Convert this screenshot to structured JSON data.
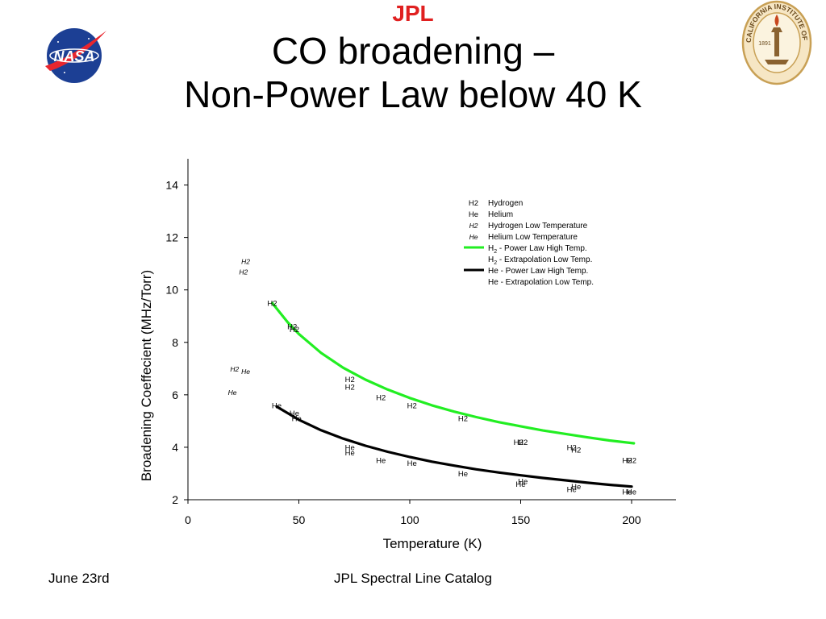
{
  "slide": {
    "title_line1": "CO broadening –",
    "title_line2": "Non-Power Law below 40 K",
    "footer_date": "June 23rd",
    "footer_source": "JPL Spectral Line Catalog"
  },
  "logos": {
    "nasa_text": "NASA",
    "jpl_text": "JPL",
    "caltech_ring_text": "CALIFORNIA INSTITUTE OF TECHNOLOGY",
    "caltech_year": "1891",
    "nasa_colors": {
      "disc": "#1c3f94",
      "chevron": "#e8262e"
    },
    "jpl_color": "#e02020",
    "caltech_color": "#c8a055"
  },
  "chart_data": {
    "type": "scatter",
    "title": "",
    "xlabel": "Temperature (K)",
    "ylabel": "Broadening Coeffecient (MHz/Torr)",
    "xlim": [
      0,
      220
    ],
    "ylim": [
      2,
      15
    ],
    "xticks": [
      0,
      50,
      100,
      150,
      200
    ],
    "yticks": [
      2,
      4,
      6,
      8,
      10,
      12,
      14
    ],
    "grid": false,
    "legend_position": "top-right",
    "legend": [
      {
        "symbol": "H2",
        "label": "Hydrogen",
        "kind": "marker",
        "italic": false
      },
      {
        "symbol": "He",
        "label": "Helium",
        "kind": "marker",
        "italic": false
      },
      {
        "symbol": "H2",
        "label": "Hydrogen Low Temperature",
        "kind": "marker",
        "italic": true
      },
      {
        "symbol": "He",
        "label": "Helium Low Temperature",
        "kind": "marker",
        "italic": true
      },
      {
        "label": "H2 - Power Law High Temp.",
        "label_main": "H",
        "label_sub": "2",
        "label_rest": " - Power Law High Temp.",
        "kind": "line",
        "color": "#22ee22"
      },
      {
        "label": "H2 - Extrapolation Low Temp.",
        "label_main": "H",
        "label_sub": "2",
        "label_rest": " - Extrapolation Low Temp.",
        "kind": "line",
        "color": "#ffffff"
      },
      {
        "label": "He - Power Law High Temp.",
        "label_main": "He",
        "label_sub": "",
        "label_rest": " - Power Law High Temp.",
        "kind": "line",
        "color": "#000000"
      },
      {
        "label": "He - Extrapolation Low Temp.",
        "label_main": "He",
        "label_sub": "",
        "label_rest": " - Extrapolation Low Temp.",
        "kind": "line",
        "color": "#ffffff"
      }
    ],
    "series": [
      {
        "name": "Hydrogen",
        "label": "H2",
        "italic": false,
        "points": [
          [
            38,
            9.5
          ],
          [
            47,
            8.6
          ],
          [
            48,
            8.5
          ],
          [
            73,
            6.6
          ],
          [
            73,
            6.3
          ],
          [
            87,
            5.9
          ],
          [
            101,
            5.6
          ],
          [
            124,
            5.1
          ],
          [
            149,
            4.2
          ],
          [
            151,
            4.2
          ],
          [
            173,
            4.0
          ],
          [
            175,
            3.9
          ],
          [
            198,
            3.5
          ],
          [
            200,
            3.5
          ]
        ]
      },
      {
        "name": "Helium",
        "label": "He",
        "italic": false,
        "points": [
          [
            40,
            5.6
          ],
          [
            48,
            5.3
          ],
          [
            49,
            5.1
          ],
          [
            73,
            4.0
          ],
          [
            73,
            3.8
          ],
          [
            87,
            3.5
          ],
          [
            101,
            3.4
          ],
          [
            124,
            3.0
          ],
          [
            151,
            2.7
          ],
          [
            150,
            2.6
          ],
          [
            175,
            2.5
          ],
          [
            173,
            2.4
          ],
          [
            198,
            2.3
          ],
          [
            200,
            2.3
          ]
        ]
      },
      {
        "name": "Hydrogen Low Temperature",
        "label": "H2",
        "italic": true,
        "points": [
          [
            26,
            11.1
          ],
          [
            25,
            10.7
          ],
          [
            21,
            7.0
          ]
        ]
      },
      {
        "name": "Helium Low Temperature",
        "label": "He",
        "italic": true,
        "points": [
          [
            26,
            6.9
          ],
          [
            20,
            6.1
          ]
        ]
      },
      {
        "name": "H2 - Power Law High Temp.",
        "kind": "curve",
        "color": "#22ee22",
        "points": [
          [
            38,
            9.5
          ],
          [
            45,
            8.76
          ],
          [
            50,
            8.32
          ],
          [
            60,
            7.6
          ],
          [
            70,
            7.03
          ],
          [
            80,
            6.58
          ],
          [
            90,
            6.2
          ],
          [
            100,
            5.88
          ],
          [
            110,
            5.6
          ],
          [
            120,
            5.36
          ],
          [
            130,
            5.15
          ],
          [
            140,
            4.96
          ],
          [
            150,
            4.8
          ],
          [
            160,
            4.64
          ],
          [
            170,
            4.51
          ],
          [
            180,
            4.38
          ],
          [
            190,
            4.26
          ],
          [
            201,
            4.15
          ]
        ]
      },
      {
        "name": "He - Power Law High Temp.",
        "kind": "curve",
        "color": "#000000",
        "points": [
          [
            40,
            5.55
          ],
          [
            50,
            5.05
          ],
          [
            60,
            4.65
          ],
          [
            70,
            4.33
          ],
          [
            80,
            4.06
          ],
          [
            90,
            3.83
          ],
          [
            100,
            3.63
          ],
          [
            110,
            3.45
          ],
          [
            120,
            3.3
          ],
          [
            130,
            3.16
          ],
          [
            140,
            3.04
          ],
          [
            150,
            2.93
          ],
          [
            160,
            2.83
          ],
          [
            170,
            2.74
          ],
          [
            180,
            2.65
          ],
          [
            190,
            2.57
          ],
          [
            200,
            2.5
          ]
        ]
      }
    ]
  }
}
